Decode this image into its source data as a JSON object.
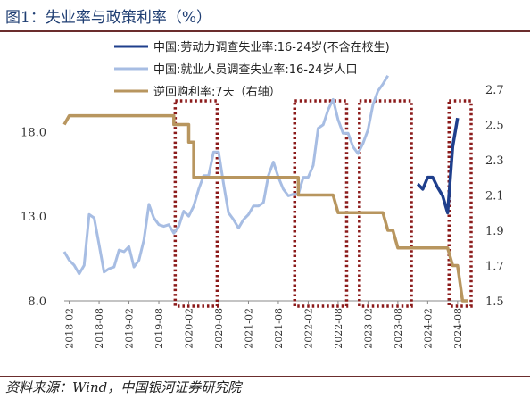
{
  "title": "图1：失业率与政策利率（%）",
  "source": "资料来源：Wind，中国银河证券研究院",
  "colors": {
    "series1": "#1f3f8c",
    "series2": "#a7bde3",
    "series3": "#b8965f",
    "highlight": "#8b1a1a"
  },
  "chart_data": {
    "type": "line",
    "left_axis": {
      "range": [
        8.0,
        20.5
      ],
      "ticks": [
        "8.0",
        "13.0",
        "18.0"
      ],
      "tick_values": [
        8,
        13,
        18
      ]
    },
    "right_axis": {
      "range": [
        1.5,
        2.7
      ],
      "ticks": [
        "1.5",
        "1.7",
        "1.9",
        "2.1",
        "2.3",
        "2.5",
        "2.7"
      ],
      "tick_values": [
        1.5,
        1.7,
        1.9,
        2.1,
        2.3,
        2.5,
        2.7
      ]
    },
    "x_ticks": [
      "2018-02",
      "2018-08",
      "2019-02",
      "2019-08",
      "2020-02",
      "2020-08",
      "2021-02",
      "2021-08",
      "2022-02",
      "2022-08",
      "2023-02",
      "2023-08",
      "2024-02",
      "2024-08"
    ],
    "x_range": [
      "2018-01",
      "2024-10"
    ],
    "series": [
      {
        "name": "中国:劳动力调查失业率:16-24岁(不含在校生)",
        "axis": "left",
        "points": [
          [
            "2023-12",
            14.9
          ],
          [
            "2024-01",
            14.6
          ],
          [
            "2024-02",
            15.3
          ],
          [
            "2024-03",
            15.3
          ],
          [
            "2024-04",
            14.7
          ],
          [
            "2024-05",
            14.2
          ],
          [
            "2024-06",
            13.2
          ],
          [
            "2024-07",
            17.1
          ],
          [
            "2024-08",
            18.8
          ]
        ]
      },
      {
        "name": "中国:就业人员调查失业率:16-24岁人口",
        "axis": "left",
        "points": [
          [
            "2018-01",
            10.9
          ],
          [
            "2018-02",
            10.4
          ],
          [
            "2018-03",
            10.1
          ],
          [
            "2018-04",
            9.6
          ],
          [
            "2018-05",
            10.1
          ],
          [
            "2018-06",
            13.1
          ],
          [
            "2018-07",
            12.9
          ],
          [
            "2018-08",
            11.3
          ],
          [
            "2018-09",
            9.7
          ],
          [
            "2018-10",
            9.9
          ],
          [
            "2018-11",
            10.0
          ],
          [
            "2018-12",
            11.0
          ],
          [
            "2019-01",
            10.9
          ],
          [
            "2019-02",
            11.2
          ],
          [
            "2019-03",
            10.0
          ],
          [
            "2019-04",
            10.4
          ],
          [
            "2019-05",
            11.6
          ],
          [
            "2019-06",
            13.7
          ],
          [
            "2019-07",
            12.9
          ],
          [
            "2019-08",
            12.5
          ],
          [
            "2019-09",
            12.4
          ],
          [
            "2019-10",
            12.5
          ],
          [
            "2019-11",
            12.0
          ],
          [
            "2019-12",
            12.4
          ],
          [
            "2020-01",
            13.3
          ],
          [
            "2020-02",
            13.0
          ],
          [
            "2020-03",
            13.6
          ],
          [
            "2020-04",
            14.6
          ],
          [
            "2020-05",
            15.4
          ],
          [
            "2020-06",
            15.4
          ],
          [
            "2020-07",
            16.8
          ],
          [
            "2020-08",
            16.8
          ],
          [
            "2020-09",
            14.9
          ],
          [
            "2020-10",
            13.2
          ],
          [
            "2020-11",
            12.8
          ],
          [
            "2020-12",
            12.3
          ],
          [
            "2021-01",
            12.8
          ],
          [
            "2021-02",
            13.1
          ],
          [
            "2021-03",
            13.6
          ],
          [
            "2021-04",
            13.6
          ],
          [
            "2021-05",
            13.8
          ],
          [
            "2021-06",
            15.4
          ],
          [
            "2021-07",
            16.2
          ],
          [
            "2021-08",
            15.3
          ],
          [
            "2021-09",
            14.6
          ],
          [
            "2021-10",
            14.2
          ],
          [
            "2021-11",
            14.3
          ],
          [
            "2021-12",
            14.3
          ],
          [
            "2022-01",
            15.3
          ],
          [
            "2022-02",
            15.3
          ],
          [
            "2022-03",
            16.0
          ],
          [
            "2022-04",
            18.2
          ],
          [
            "2022-05",
            18.4
          ],
          [
            "2022-06",
            19.3
          ],
          [
            "2022-07",
            19.9
          ],
          [
            "2022-08",
            18.7
          ],
          [
            "2022-09",
            17.9
          ],
          [
            "2022-10",
            17.9
          ],
          [
            "2022-11",
            17.1
          ],
          [
            "2022-12",
            16.7
          ],
          [
            "2023-01",
            17.3
          ],
          [
            "2023-02",
            18.1
          ],
          [
            "2023-03",
            19.6
          ],
          [
            "2023-04",
            20.4
          ],
          [
            "2023-05",
            20.8
          ],
          [
            "2023-06",
            21.3
          ]
        ]
      },
      {
        "name": "逆回购利率:7天（右轴）",
        "axis": "right",
        "points": [
          [
            "2018-01",
            2.5
          ],
          [
            "2018-02",
            2.55
          ],
          [
            "2019-11",
            2.55
          ],
          [
            "2019-11",
            2.5
          ],
          [
            "2020-02",
            2.5
          ],
          [
            "2020-02",
            2.4
          ],
          [
            "2020-03",
            2.4
          ],
          [
            "2020-03",
            2.2
          ],
          [
            "2021-12",
            2.2
          ],
          [
            "2021-12",
            2.1
          ],
          [
            "2022-07",
            2.1
          ],
          [
            "2022-08",
            2.0
          ],
          [
            "2023-05",
            2.0
          ],
          [
            "2023-06",
            1.9
          ],
          [
            "2023-07",
            1.9
          ],
          [
            "2023-08",
            1.8
          ],
          [
            "2024-06",
            1.8
          ],
          [
            "2024-07",
            1.7
          ],
          [
            "2024-08",
            1.7
          ],
          [
            "2024-09",
            1.5
          ],
          [
            "2024-10",
            1.5
          ]
        ]
      }
    ],
    "highlight_windows": [
      [
        "2019-12",
        "2020-07"
      ],
      [
        "2021-12",
        "2022-09"
      ],
      [
        "2023-01",
        "2023-10"
      ],
      [
        "2024-07",
        "2024-10"
      ]
    ]
  }
}
